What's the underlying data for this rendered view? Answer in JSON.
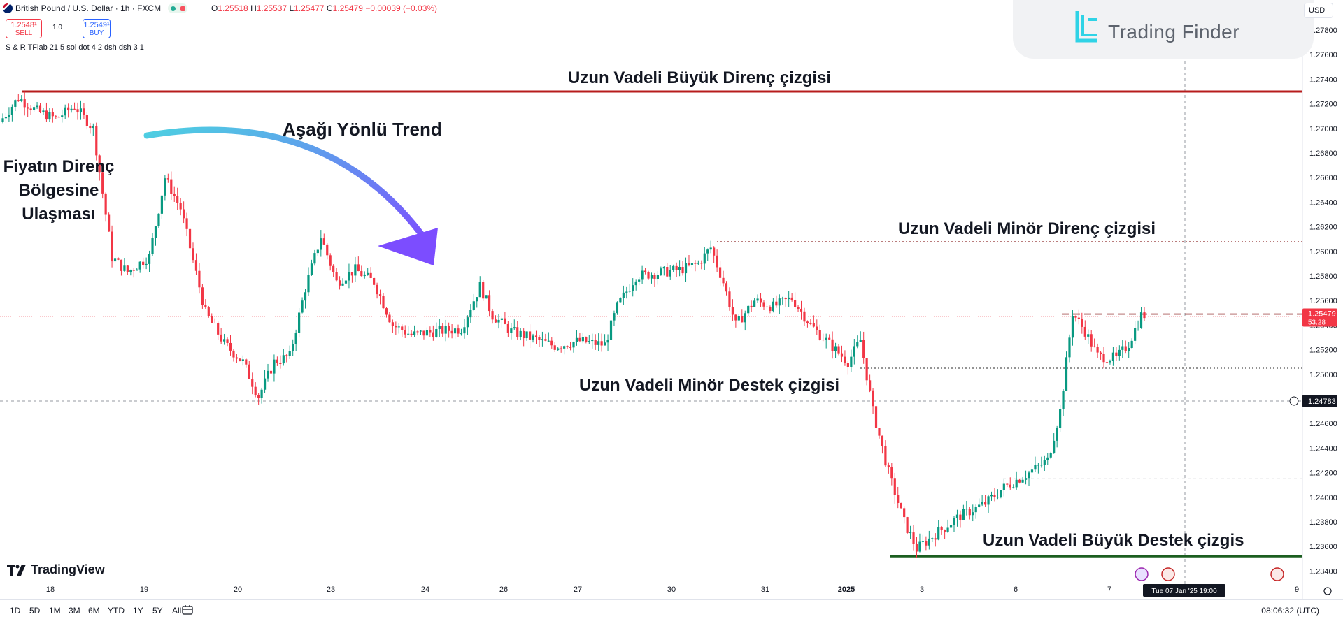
{
  "header": {
    "symbol": "British Pound / U.S. Dollar · 1h · FXCM",
    "ohlc": {
      "open_label": "O",
      "open": "1.25518",
      "high_label": "H",
      "high": "1.25537",
      "low_label": "L",
      "low": "1.25477",
      "close_label": "C",
      "close": "1.25479",
      "change": "−0.00039 (−0.03%)"
    },
    "sell_price": "1.2548¹",
    "sell_label": "SELL",
    "spread": "1.0",
    "buy_price": "1.2549¹",
    "buy_label": "BUY",
    "indicator": "S & R TFlab 21 5 sol dot 4 2 dsh dsh 3 1",
    "currency": "USD"
  },
  "watermark": {
    "text": "Trading Finder"
  },
  "branding": {
    "text": "TradingView"
  },
  "annotations": {
    "major_resistance": "Uzun Vadeli Büyük Direnç çizgisi",
    "downtrend": "Aşağı Yönlü Trend",
    "price_reach_1": "Fiyatın Direnç",
    "price_reach_2": "Bölgesine",
    "price_reach_3": "Ulaşması",
    "minor_resistance": "Uzun Vadeli Minör Direnç çizgisi",
    "minor_support": "Uzun Vadeli Minör Destek çizgisi",
    "major_support": "Uzun Vadeli Büyük Destek çizgis"
  },
  "timeframes": [
    "1D",
    "5D",
    "1M",
    "3M",
    "6M",
    "YTD",
    "1Y",
    "5Y",
    "All"
  ],
  "clock": "08:06:32 (UTC)",
  "colors": {
    "up": "#089981",
    "down": "#f23645",
    "major_resistance": "#b71c1c",
    "major_support": "#1b5e20",
    "arrow_start": "#4dd0e1",
    "arrow_end": "#7c4dff"
  },
  "chart_data": {
    "type": "candlestick",
    "interval": "1h",
    "ylim": [
      1.233,
      1.28
    ],
    "y_ticks": [
      1.278,
      1.276,
      1.274,
      1.272,
      1.27,
      1.268,
      1.266,
      1.264,
      1.262,
      1.26,
      1.258,
      1.256,
      1.254,
      1.252,
      1.25,
      1.248,
      1.246,
      1.244,
      1.242,
      1.24,
      1.238,
      1.236,
      1.234
    ],
    "y_tick_labels": [
      "1.27800",
      "1.27600",
      "1.27400",
      "1.27200",
      "1.27000",
      "1.26800",
      "1.26600",
      "1.26400",
      "1.26200",
      "1.26000",
      "1.25800",
      "1.25600",
      "1.25400",
      "1.25200",
      "1.25000",
      "1.24800",
      "1.24600",
      "1.24400",
      "1.24200",
      "1.24000",
      "1.23800",
      "1.23600",
      "1.23400"
    ],
    "x_tick_labels": [
      "18",
      "19",
      "20",
      "23",
      "24",
      "26",
      "27",
      "30",
      "31",
      "2025",
      "3",
      "6",
      "7",
      "9"
    ],
    "levels": {
      "major_resistance": 1.273,
      "minor_resistance": 1.2608,
      "minor_support": 1.2505,
      "major_support": 1.2352,
      "current_dashed": 1.2549,
      "crosshair": 1.24783
    },
    "last_price_label": "1.25479",
    "countdown": "53:28",
    "crosshair_label": "1.24783",
    "crosshair_time": "Tue 07 Jan '25   19:00",
    "path": [
      [
        0,
        1.2705
      ],
      [
        6,
        1.2725
      ],
      [
        12,
        1.2714
      ],
      [
        18,
        1.2708
      ],
      [
        24,
        1.2718
      ],
      [
        30,
        1.27
      ],
      [
        36,
        1.2595
      ],
      [
        41,
        1.2583
      ],
      [
        48,
        1.2596
      ],
      [
        53,
        1.266
      ],
      [
        58,
        1.2635
      ],
      [
        66,
        1.255
      ],
      [
        72,
        1.2525
      ],
      [
        78,
        1.251
      ],
      [
        83,
        1.2482
      ],
      [
        88,
        1.251
      ],
      [
        93,
        1.2515
      ],
      [
        98,
        1.257
      ],
      [
        103,
        1.2612
      ],
      [
        108,
        1.2575
      ],
      [
        114,
        1.2585
      ],
      [
        120,
        1.2575
      ],
      [
        126,
        1.254
      ],
      [
        132,
        1.2532
      ],
      [
        140,
        1.2535
      ],
      [
        148,
        1.2537
      ],
      [
        154,
        1.2572
      ],
      [
        158,
        1.2548
      ],
      [
        164,
        1.2535
      ],
      [
        170,
        1.253
      ],
      [
        178,
        1.2523
      ],
      [
        186,
        1.2527
      ],
      [
        194,
        1.2524
      ],
      [
        198,
        1.2555
      ],
      [
        204,
        1.258
      ],
      [
        210,
        1.2582
      ],
      [
        218,
        1.2585
      ],
      [
        224,
        1.259
      ],
      [
        228,
        1.2603
      ],
      [
        232,
        1.2575
      ],
      [
        236,
        1.254
      ],
      [
        242,
        1.256
      ],
      [
        248,
        1.2555
      ],
      [
        254,
        1.2562
      ],
      [
        260,
        1.254
      ],
      [
        266,
        1.2525
      ],
      [
        272,
        1.251
      ],
      [
        276,
        1.2528
      ],
      [
        280,
        1.247
      ],
      [
        285,
        1.242
      ],
      [
        290,
        1.238
      ],
      [
        294,
        1.2358
      ],
      [
        300,
        1.237
      ],
      [
        308,
        1.2385
      ],
      [
        316,
        1.2395
      ],
      [
        322,
        1.2408
      ],
      [
        330,
        1.242
      ],
      [
        336,
        1.243
      ],
      [
        340,
        1.247
      ],
      [
        344,
        1.255
      ],
      [
        348,
        1.2535
      ],
      [
        352,
        1.2515
      ],
      [
        358,
        1.2513
      ],
      [
        362,
        1.2525
      ],
      [
        366,
        1.2548
      ]
    ]
  }
}
